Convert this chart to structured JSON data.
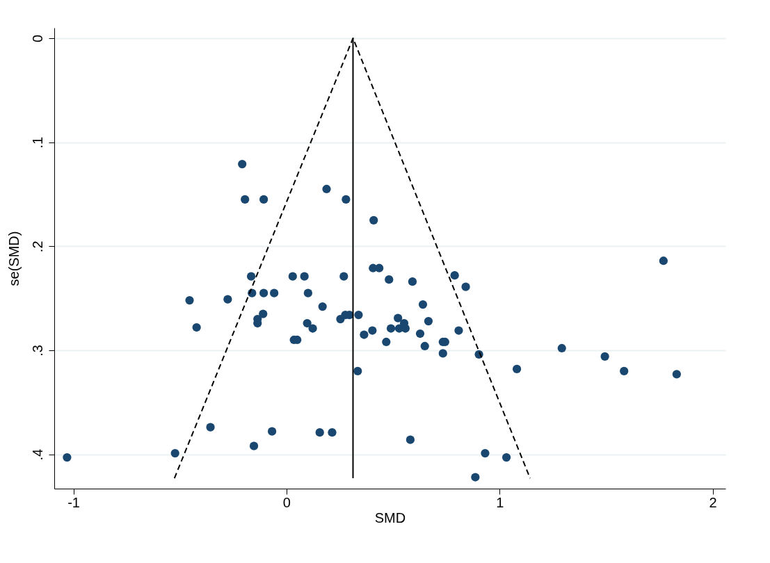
{
  "chart_data": {
    "type": "scatter",
    "xlabel": "SMD",
    "ylabel": "se(SMD)",
    "xlim": [
      -1.09,
      2.06
    ],
    "ylim": [
      0.433,
      -0.01
    ],
    "xticks": [
      -1,
      0,
      1,
      2
    ],
    "yticks": [
      0,
      {
        "value": 0.1,
        "label": ".1"
      },
      {
        "value": 0.2,
        "label": ".2"
      },
      {
        "value": 0.3,
        "label": ".3"
      },
      {
        "value": 0.4,
        "label": ".4"
      }
    ],
    "grid": "y",
    "series": [
      {
        "color": "#1a476f",
        "marker": "circle",
        "x": [
          -1.03,
          -0.523,
          -0.357,
          -0.153,
          -0.068,
          0.156,
          0.214,
          0.581,
          0.886,
          0.932,
          1.032,
          0.334,
          -0.208,
          -0.195,
          -0.107,
          0.188,
          0.279,
          0.409,
          0.406,
          0.435,
          0.481,
          0.591,
          0.789,
          0.841,
          1.769,
          -0.455,
          -0.422,
          -0.276,
          -0.166,
          -0.162,
          -0.107,
          -0.058,
          -0.11,
          -0.136,
          -0.136,
          0.029,
          0.084,
          0.101,
          0.097,
          0.035,
          0.05,
          0.169,
          0.123,
          0.269,
          0.253,
          0.276,
          0.295,
          0.338,
          0.364,
          0.403,
          0.468,
          0.49,
          0.523,
          0.529,
          0.552,
          0.558,
          0.627,
          0.64,
          0.666,
          0.649,
          0.734,
          0.744,
          0.734,
          0.808,
          0.903,
          1.081,
          1.292,
          1.494,
          1.584,
          1.831
        ],
        "values": [
          0.403,
          0.399,
          0.374,
          0.392,
          0.378,
          0.379,
          0.379,
          0.386,
          0.422,
          0.399,
          0.403,
          0.32,
          0.121,
          0.155,
          0.155,
          0.145,
          0.155,
          0.175,
          0.221,
          0.221,
          0.232,
          0.234,
          0.228,
          0.239,
          0.214,
          0.252,
          0.278,
          0.251,
          0.229,
          0.245,
          0.245,
          0.245,
          0.265,
          0.27,
          0.274,
          0.229,
          0.229,
          0.245,
          0.274,
          0.29,
          0.29,
          0.258,
          0.279,
          0.229,
          0.27,
          0.266,
          0.266,
          0.266,
          0.285,
          0.281,
          0.292,
          0.279,
          0.269,
          0.279,
          0.274,
          0.279,
          0.284,
          0.256,
          0.272,
          0.296,
          0.292,
          0.292,
          0.303,
          0.281,
          0.304,
          0.318,
          0.298,
          0.306,
          0.32,
          0.323
        ]
      },
      {
        "type": "line",
        "color": "#000000",
        "line_style": "solid",
        "x": [
          0.312,
          0.312
        ],
        "values": [
          0,
          0.423
        ]
      },
      {
        "type": "line",
        "color": "#000000",
        "line_style": "dashed",
        "x": [
          -0.526,
          0.312,
          1.143
        ],
        "values": [
          0.423,
          0,
          0.423
        ]
      }
    ]
  }
}
